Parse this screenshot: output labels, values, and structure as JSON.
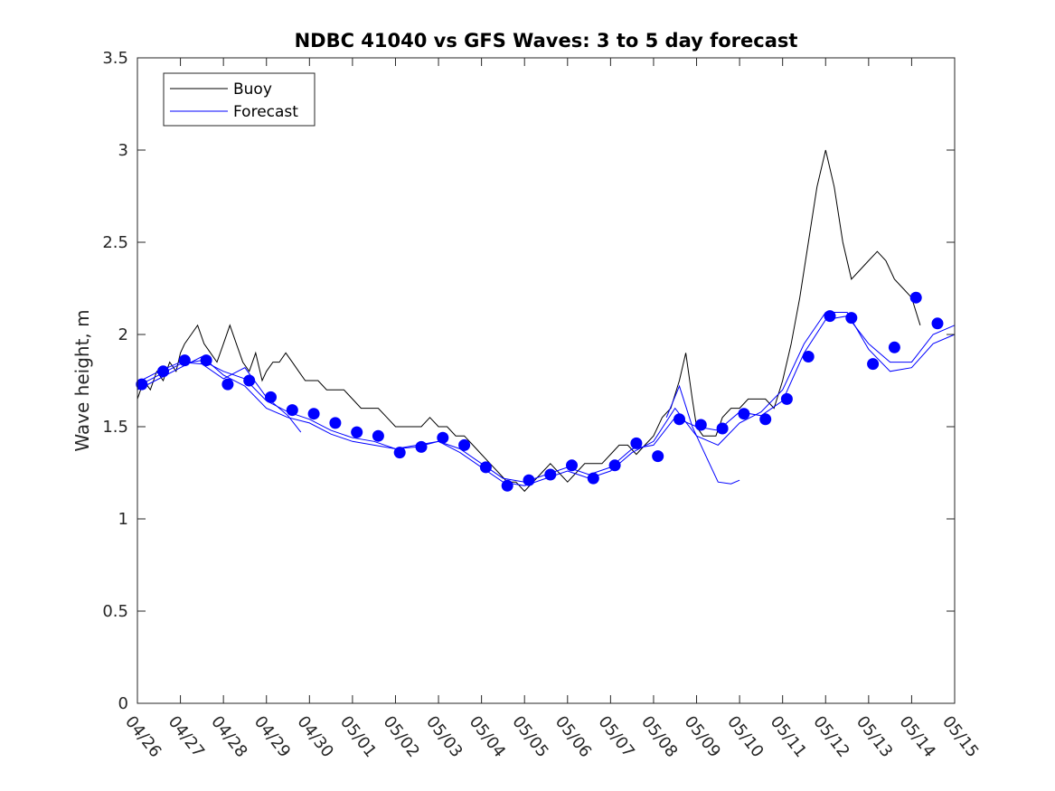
{
  "chart_data": {
    "type": "line",
    "title": "NDBC 41040 vs GFS Waves: 3 to 5 day forecast",
    "xlabel": "",
    "ylabel": "Wave height, m",
    "xlim": [
      0,
      19
    ],
    "ylim": [
      0,
      3.5
    ],
    "x_ticks": [
      0,
      1,
      2,
      3,
      4,
      5,
      6,
      7,
      8,
      9,
      10,
      11,
      12,
      13,
      14,
      15,
      16,
      17,
      18,
      19
    ],
    "x_tick_labels": [
      "04/26",
      "04/27",
      "04/28",
      "04/29",
      "04/30",
      "05/01",
      "05/02",
      "05/03",
      "05/04",
      "05/05",
      "05/06",
      "05/07",
      "05/08",
      "05/09",
      "05/10",
      "05/11",
      "05/12",
      "05/13",
      "05/14",
      "05/15"
    ],
    "y_ticks": [
      0,
      0.5,
      1,
      1.5,
      2,
      2.5,
      3,
      3.5
    ],
    "y_tick_labels": [
      "0",
      "0.5",
      "1",
      "1.5",
      "2",
      "2.5",
      "3",
      "3.5"
    ],
    "x_unit": "days since 04/26",
    "grid": false,
    "legend": {
      "location": "top-left",
      "entries": [
        "Buoy",
        "Forecast"
      ]
    },
    "colors": {
      "buoy": "#000000",
      "forecast": "#0000ff",
      "axes": "#262626"
    },
    "series": [
      {
        "name": "Buoy",
        "style": "line",
        "x": [
          0,
          0.15,
          0.3,
          0.45,
          0.6,
          0.75,
          0.9,
          1.0,
          1.1,
          1.25,
          1.4,
          1.55,
          1.7,
          1.85,
          2.0,
          2.15,
          2.3,
          2.45,
          2.6,
          2.75,
          2.9,
          3.0,
          3.15,
          3.3,
          3.45,
          3.6,
          3.75,
          3.9,
          4.0,
          4.2,
          4.4,
          4.6,
          4.8,
          5.0,
          5.2,
          5.4,
          5.6,
          5.8,
          6.0,
          6.2,
          6.4,
          6.6,
          6.8,
          7.0,
          7.2,
          7.4,
          7.6,
          7.8,
          8.0,
          8.2,
          8.4,
          8.6,
          8.8,
          9.0,
          9.2,
          9.4,
          9.6,
          9.8,
          10.0,
          10.2,
          10.4,
          10.6,
          10.8,
          11.0,
          11.2,
          11.4,
          11.6,
          11.8,
          12.0,
          12.2,
          12.4,
          12.6,
          12.75,
          12.9,
          13.0,
          13.15,
          13.3,
          13.45,
          13.6,
          13.8,
          14.0,
          14.2,
          14.4,
          14.6,
          14.8,
          15.0,
          15.2,
          15.4,
          15.6,
          15.8,
          16.0,
          16.2,
          16.4,
          16.6,
          16.8,
          17.0,
          17.2,
          17.4,
          17.6,
          17.8,
          18.0,
          18.2
        ],
        "y": [
          1.65,
          1.75,
          1.7,
          1.8,
          1.75,
          1.85,
          1.8,
          1.9,
          1.95,
          2.0,
          2.05,
          1.95,
          1.9,
          1.85,
          1.95,
          2.05,
          1.95,
          1.85,
          1.8,
          1.9,
          1.75,
          1.8,
          1.85,
          1.85,
          1.9,
          1.85,
          1.8,
          1.75,
          1.75,
          1.75,
          1.7,
          1.7,
          1.7,
          1.65,
          1.6,
          1.6,
          1.6,
          1.55,
          1.5,
          1.5,
          1.5,
          1.5,
          1.55,
          1.5,
          1.5,
          1.45,
          1.45,
          1.4,
          1.35,
          1.3,
          1.25,
          1.2,
          1.2,
          1.15,
          1.2,
          1.25,
          1.3,
          1.25,
          1.2,
          1.25,
          1.3,
          1.3,
          1.3,
          1.35,
          1.4,
          1.4,
          1.35,
          1.4,
          1.45,
          1.55,
          1.6,
          1.75,
          1.9,
          1.65,
          1.5,
          1.45,
          1.45,
          1.45,
          1.55,
          1.6,
          1.6,
          1.65,
          1.65,
          1.65,
          1.6,
          1.75,
          1.95,
          2.2,
          2.5,
          2.8,
          3.0,
          2.8,
          2.5,
          2.3,
          2.35,
          2.4,
          2.45,
          2.4,
          2.3,
          2.25,
          2.2,
          2.05
        ]
      },
      {
        "name": "Forecast",
        "style": "markers",
        "x": [
          0.1,
          0.6,
          1.1,
          1.6,
          2.1,
          2.6,
          3.1,
          3.6,
          4.1,
          4.6,
          5.1,
          5.6,
          6.1,
          6.6,
          7.1,
          7.6,
          8.1,
          8.6,
          9.1,
          9.6,
          10.1,
          10.6,
          11.1,
          11.6,
          12.1,
          12.6,
          13.1,
          13.6,
          14.1,
          14.6,
          15.1,
          15.6,
          16.1,
          16.6,
          17.1,
          17.6,
          18.1,
          18.6
        ],
        "y": [
          1.73,
          1.8,
          1.86,
          1.86,
          1.73,
          1.75,
          1.66,
          1.59,
          1.57,
          1.52,
          1.47,
          1.45,
          1.36,
          1.39,
          1.44,
          1.4,
          1.28,
          1.18,
          1.21,
          1.24,
          1.29,
          1.22,
          1.29,
          1.41,
          1.34,
          1.54,
          1.51,
          1.49,
          1.57,
          1.54,
          1.65,
          1.88,
          2.1,
          2.09,
          1.84,
          1.93,
          2.2,
          2.06
        ]
      },
      {
        "name": "",
        "style": "line",
        "x": [
          0,
          0.5,
          1.0,
          1.5,
          2.0,
          2.5,
          3.0,
          3.5,
          4.0,
          4.5,
          5.0,
          5.5,
          6.0,
          6.5,
          7.0,
          7.5,
          8.0,
          8.5,
          9.0,
          9.5,
          10.0,
          10.5,
          11.0,
          11.5,
          12.0,
          12.5,
          13.0,
          13.5,
          14.0,
          14.5,
          15.0,
          15.5,
          16.0,
          16.5,
          17.0,
          17.5,
          18.0,
          18.5,
          19.0
        ],
        "y": [
          1.72,
          1.78,
          1.84,
          1.86,
          1.8,
          1.76,
          1.64,
          1.58,
          1.54,
          1.48,
          1.44,
          1.42,
          1.38,
          1.39,
          1.42,
          1.38,
          1.3,
          1.22,
          1.2,
          1.24,
          1.28,
          1.24,
          1.28,
          1.38,
          1.4,
          1.55,
          1.5,
          1.48,
          1.58,
          1.56,
          1.64,
          1.9,
          2.08,
          2.1,
          1.95,
          1.85,
          1.85,
          2.0,
          2.05
        ]
      },
      {
        "name": "",
        "style": "line",
        "x": [
          0,
          0.5,
          1.0,
          1.5,
          2.0,
          2.5,
          3.0,
          3.5,
          4.0,
          4.5,
          5.0,
          5.5,
          6.0,
          6.5,
          7.0,
          7.5,
          8.0,
          8.5,
          9.0,
          9.5,
          10.0,
          10.5,
          11.0,
          11.5,
          12.0,
          12.5,
          13.0,
          13.5,
          14.0,
          14.5,
          15.0,
          15.5,
          16.0,
          16.5,
          17.0,
          17.5,
          18.0,
          18.5,
          19.0
        ],
        "y": [
          1.7,
          1.76,
          1.82,
          1.88,
          1.78,
          1.72,
          1.6,
          1.55,
          1.52,
          1.46,
          1.42,
          1.4,
          1.38,
          1.4,
          1.42,
          1.36,
          1.28,
          1.2,
          1.18,
          1.22,
          1.26,
          1.22,
          1.26,
          1.36,
          1.42,
          1.6,
          1.45,
          1.4,
          1.52,
          1.58,
          1.7,
          1.95,
          2.12,
          2.12,
          1.92,
          1.8,
          1.82,
          1.95,
          2.0
        ]
      },
      {
        "name": "",
        "style": "line",
        "x": [
          0,
          0.5,
          1.0,
          1.5,
          2.0,
          2.5,
          3.0,
          3.5,
          3.8
        ],
        "y": [
          1.74,
          1.8,
          1.85,
          1.84,
          1.76,
          1.82,
          1.66,
          1.56,
          1.47
        ]
      },
      {
        "name": "",
        "style": "line",
        "x": [
          12.3,
          12.6,
          12.9,
          13.2,
          13.5,
          13.8,
          14.0
        ],
        "y": [
          1.55,
          1.72,
          1.5,
          1.35,
          1.2,
          1.19,
          1.21
        ]
      }
    ]
  }
}
